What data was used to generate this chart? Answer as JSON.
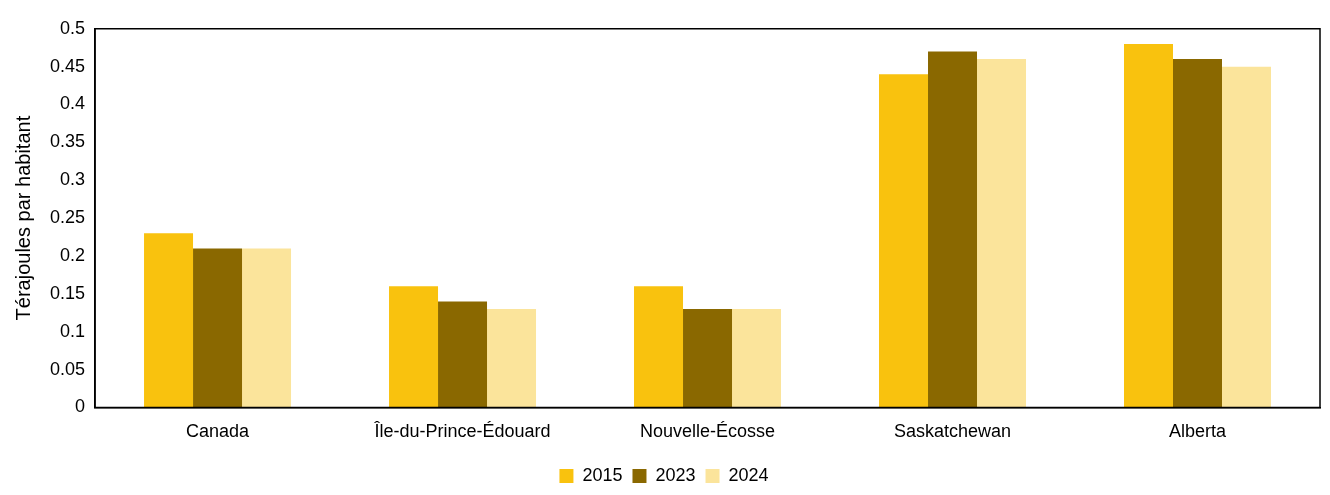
{
  "chart_data": {
    "type": "bar",
    "ylabel": "Térajoules par habitant",
    "categories": [
      "Canada",
      "Île-du-Prince-Édouard",
      "Nouvelle-Écosse",
      "Saskatchewan",
      "Alberta"
    ],
    "series": [
      {
        "name": "2015",
        "color": "#f9c20e",
        "values": [
          0.23,
          0.16,
          0.16,
          0.44,
          0.48
        ]
      },
      {
        "name": "2023",
        "color": "#8a6800",
        "values": [
          0.21,
          0.14,
          0.13,
          0.47,
          0.46
        ]
      },
      {
        "name": "2024",
        "color": "#fbe49b",
        "values": [
          0.21,
          0.13,
          0.13,
          0.46,
          0.45
        ]
      }
    ],
    "ylim": [
      0,
      0.5
    ],
    "yticks": [
      0,
      0.05,
      0.1,
      0.15,
      0.2,
      0.25,
      0.3,
      0.35,
      0.4,
      0.45,
      0.5
    ],
    "grid": false,
    "legend": "bottom"
  }
}
